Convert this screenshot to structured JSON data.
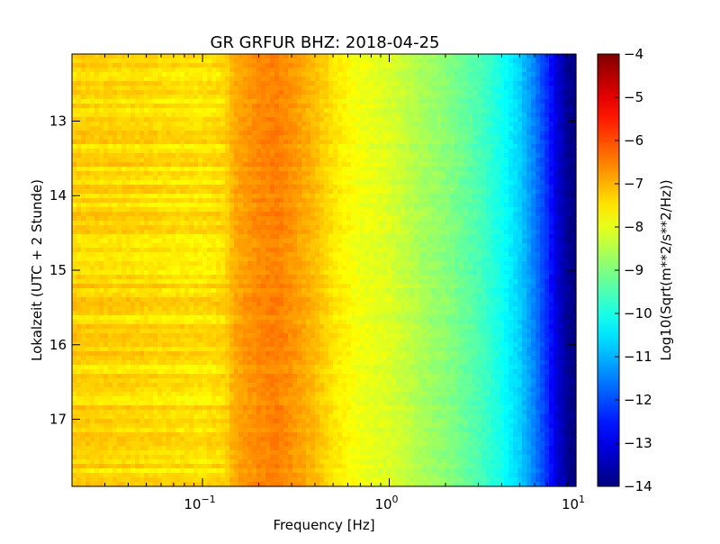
{
  "chart_data": {
    "type": "heatmap",
    "title": "GR GRFUR BHZ: 2018-04-25",
    "xlabel": "Frequency [Hz]",
    "ylabel": "Lokalzeit (UTC + 2 Stunde)",
    "x_scale": "log",
    "xlim": [
      0.02,
      10
    ],
    "ylim": [
      17.9,
      12.1
    ],
    "x_ticks": [
      {
        "value": 0.1,
        "base": "10",
        "exp": "−1"
      },
      {
        "value": 1,
        "base": "10",
        "exp": "0"
      },
      {
        "value": 10,
        "base": "10",
        "exp": "1"
      }
    ],
    "y_ticks": [
      {
        "value": 13,
        "label": "13"
      },
      {
        "value": 14,
        "label": "14"
      },
      {
        "value": 15,
        "label": "15"
      },
      {
        "value": 16,
        "label": "16"
      },
      {
        "value": 17,
        "label": "17"
      }
    ],
    "colorbar": {
      "label": "Log10(Sqrt(m**2/s**2/Hz))",
      "colormap": "jet",
      "range": [
        -14,
        -4
      ],
      "ticks": [
        {
          "value": -4,
          "label": "−4"
        },
        {
          "value": -5,
          "label": "−5"
        },
        {
          "value": -6,
          "label": "−6"
        },
        {
          "value": -7,
          "label": "−7"
        },
        {
          "value": -8,
          "label": "−8"
        },
        {
          "value": -9,
          "label": "−9"
        },
        {
          "value": -10,
          "label": "−10"
        },
        {
          "value": -11,
          "label": "−11"
        },
        {
          "value": -12,
          "label": "−12"
        },
        {
          "value": -13,
          "label": "−13"
        },
        {
          "value": -14,
          "label": "−14"
        }
      ]
    },
    "spectral_profile": {
      "frequency_hz": [
        0.02,
        0.05,
        0.1,
        0.13,
        0.15,
        0.2,
        0.25,
        0.3,
        0.4,
        0.5,
        0.7,
        1.0,
        1.5,
        2.0,
        3.0,
        4.0,
        5.0,
        6.0,
        7.0,
        8.0,
        9.0,
        10.0
      ],
      "log10_amplitude": [
        -7.3,
        -7.4,
        -7.5,
        -7.4,
        -6.9,
        -6.6,
        -6.5,
        -6.7,
        -7.1,
        -7.5,
        -7.9,
        -8.1,
        -8.6,
        -8.9,
        -9.5,
        -10.1,
        -10.7,
        -11.5,
        -12.3,
        -13.2,
        -13.8,
        -14.0
      ]
    }
  }
}
